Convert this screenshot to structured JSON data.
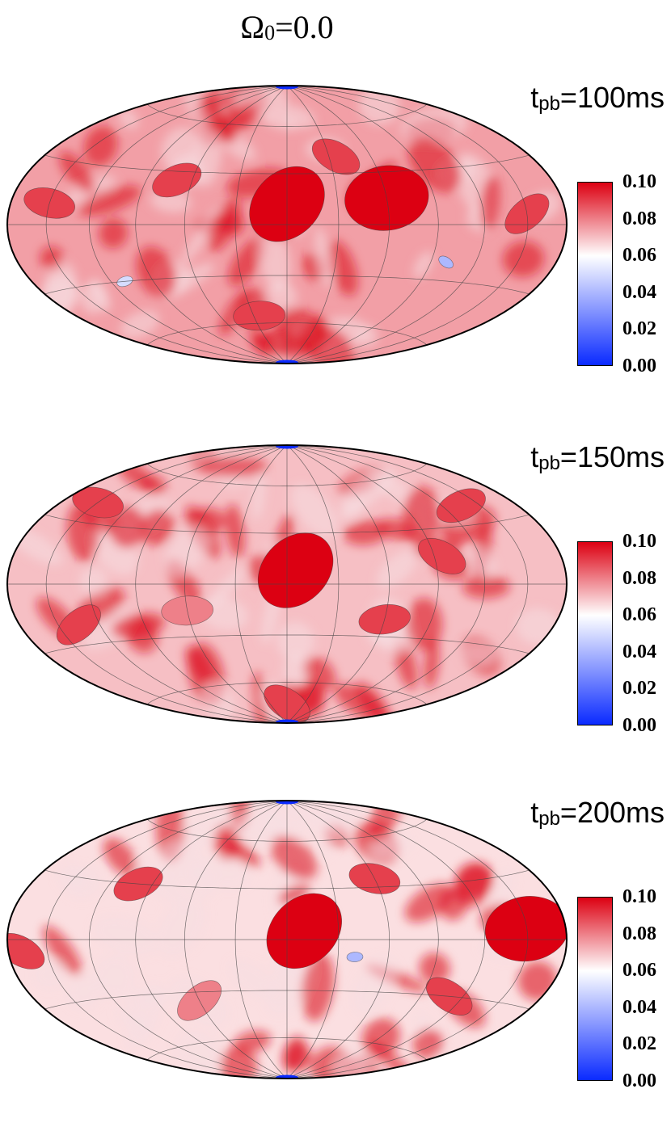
{
  "title": {
    "omega": "Ω",
    "omega_sub": "0",
    "value": "=0.0"
  },
  "chart_data": [
    {
      "type": "heatmap",
      "projection": "Aitoff/Hammer (full sphere)",
      "label": {
        "t": "t",
        "sub": "pb",
        "value": "=100ms"
      },
      "colorbar": {
        "ticks": [
          "0.10",
          "0.08",
          "0.06",
          "0.04",
          "0.02",
          "0.00"
        ],
        "range": [
          0.0,
          0.1
        ],
        "colormap": [
          "#0a2aff",
          "#ffffff",
          "#dc0012"
        ]
      },
      "dominant_level": 0.08,
      "features": [
        {
          "lon": 0,
          "lat": 12,
          "level": 0.1
        },
        {
          "lon": 60,
          "lat": 15,
          "level": 0.1
        },
        {
          "lon": 35,
          "lat": 40,
          "level": 0.09
        },
        {
          "lon": -70,
          "lat": 25,
          "level": 0.09
        },
        {
          "lon": -150,
          "lat": 10,
          "level": 0.09
        },
        {
          "lon": 150,
          "lat": 5,
          "level": 0.09
        },
        {
          "lon": -25,
          "lat": -55,
          "level": 0.09
        },
        {
          "lon": 100,
          "lat": -20,
          "level": 0.04
        },
        {
          "lon": -110,
          "lat": -30,
          "level": 0.05
        }
      ]
    },
    {
      "type": "heatmap",
      "projection": "Aitoff/Hammer (full sphere)",
      "label": {
        "t": "t",
        "sub": "pb",
        "value": "=150ms"
      },
      "colorbar": {
        "ticks": [
          "0.10",
          "0.08",
          "0.06",
          "0.04",
          "0.02",
          "0.00"
        ],
        "range": [
          0.0,
          0.1
        ],
        "colormap": [
          "#0a2aff",
          "#ffffff",
          "#dc0012"
        ]
      },
      "dominant_level": 0.075,
      "features": [
        {
          "lon": 5,
          "lat": 8,
          "level": 0.1
        },
        {
          "lon": 60,
          "lat": -20,
          "level": 0.09
        },
        {
          "lon": 95,
          "lat": 15,
          "level": 0.09
        },
        {
          "lon": 135,
          "lat": 40,
          "level": 0.09
        },
        {
          "lon": -150,
          "lat": 40,
          "level": 0.09
        },
        {
          "lon": -135,
          "lat": -20,
          "level": 0.09
        },
        {
          "lon": -60,
          "lat": -15,
          "level": 0.08
        },
        {
          "lon": 0,
          "lat": -75,
          "level": 0.09
        }
      ]
    },
    {
      "type": "heatmap",
      "projection": "Aitoff/Hammer (full sphere)",
      "label": {
        "t": "t",
        "sub": "pb",
        "value": "=200ms"
      },
      "colorbar": {
        "ticks": [
          "0.10",
          "0.08",
          "0.06",
          "0.04",
          "0.02",
          "0.00"
        ],
        "range": [
          0.0,
          0.1
        ],
        "colormap": [
          "#0a2aff",
          "#ffffff",
          "#dc0012"
        ]
      },
      "dominant_level": 0.07,
      "features": [
        {
          "lon": 10,
          "lat": 5,
          "level": 0.1
        },
        {
          "lon": 150,
          "lat": 5,
          "level": 0.1
        },
        {
          "lon": -170,
          "lat": -5,
          "level": 0.09
        },
        {
          "lon": -100,
          "lat": 30,
          "level": 0.09
        },
        {
          "lon": 60,
          "lat": 35,
          "level": 0.09
        },
        {
          "lon": -60,
          "lat": -35,
          "level": 0.08
        },
        {
          "lon": 40,
          "lat": -10,
          "level": 0.04
        },
        {
          "lon": 110,
          "lat": -30,
          "level": 0.09
        }
      ]
    }
  ]
}
